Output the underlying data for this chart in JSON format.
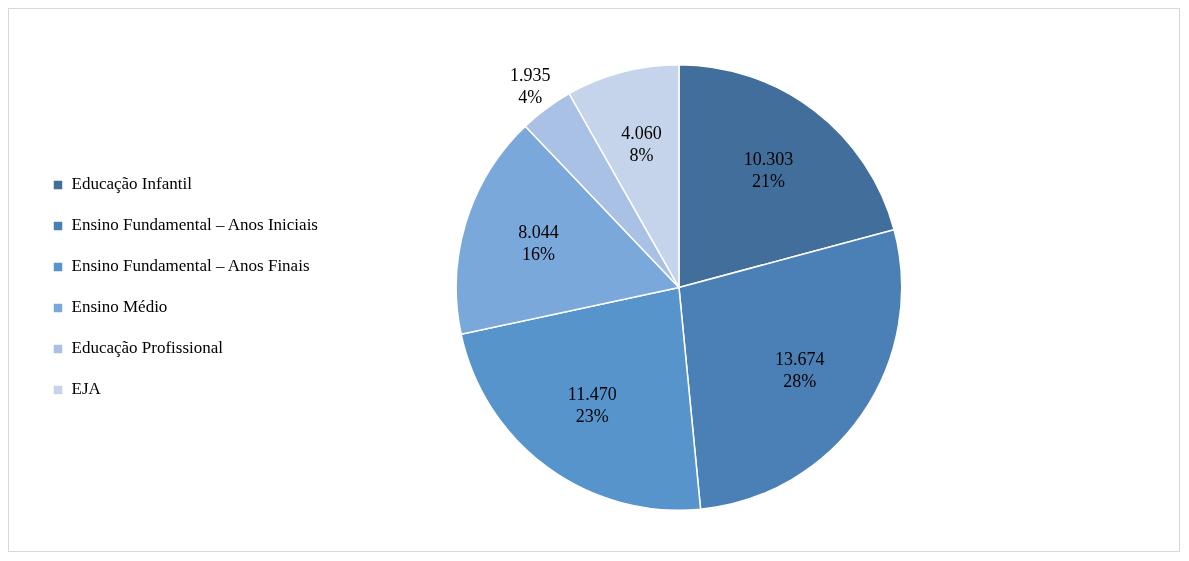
{
  "chart_data": {
    "type": "pie",
    "categories": [
      "Educação Infantil",
      "Ensino Fundamental – Anos Iniciais",
      "Ensino Fundamental – Anos Finais",
      "Ensino Médio",
      "Educação Profissional",
      "EJA"
    ],
    "values": [
      10303,
      13674,
      11470,
      8044,
      1935,
      4060
    ],
    "colors": [
      "#416e9b",
      "#4a80b6",
      "#5794cc",
      "#7ba8da",
      "#a8c1e4",
      "#c6d4eb"
    ],
    "value_labels": [
      "10.303\n21%",
      "13.674\n28%",
      "11.470\n23%",
      "8.044\n16%",
      "1.935\n4%",
      "4.060\n8%"
    ],
    "legend": "left"
  }
}
